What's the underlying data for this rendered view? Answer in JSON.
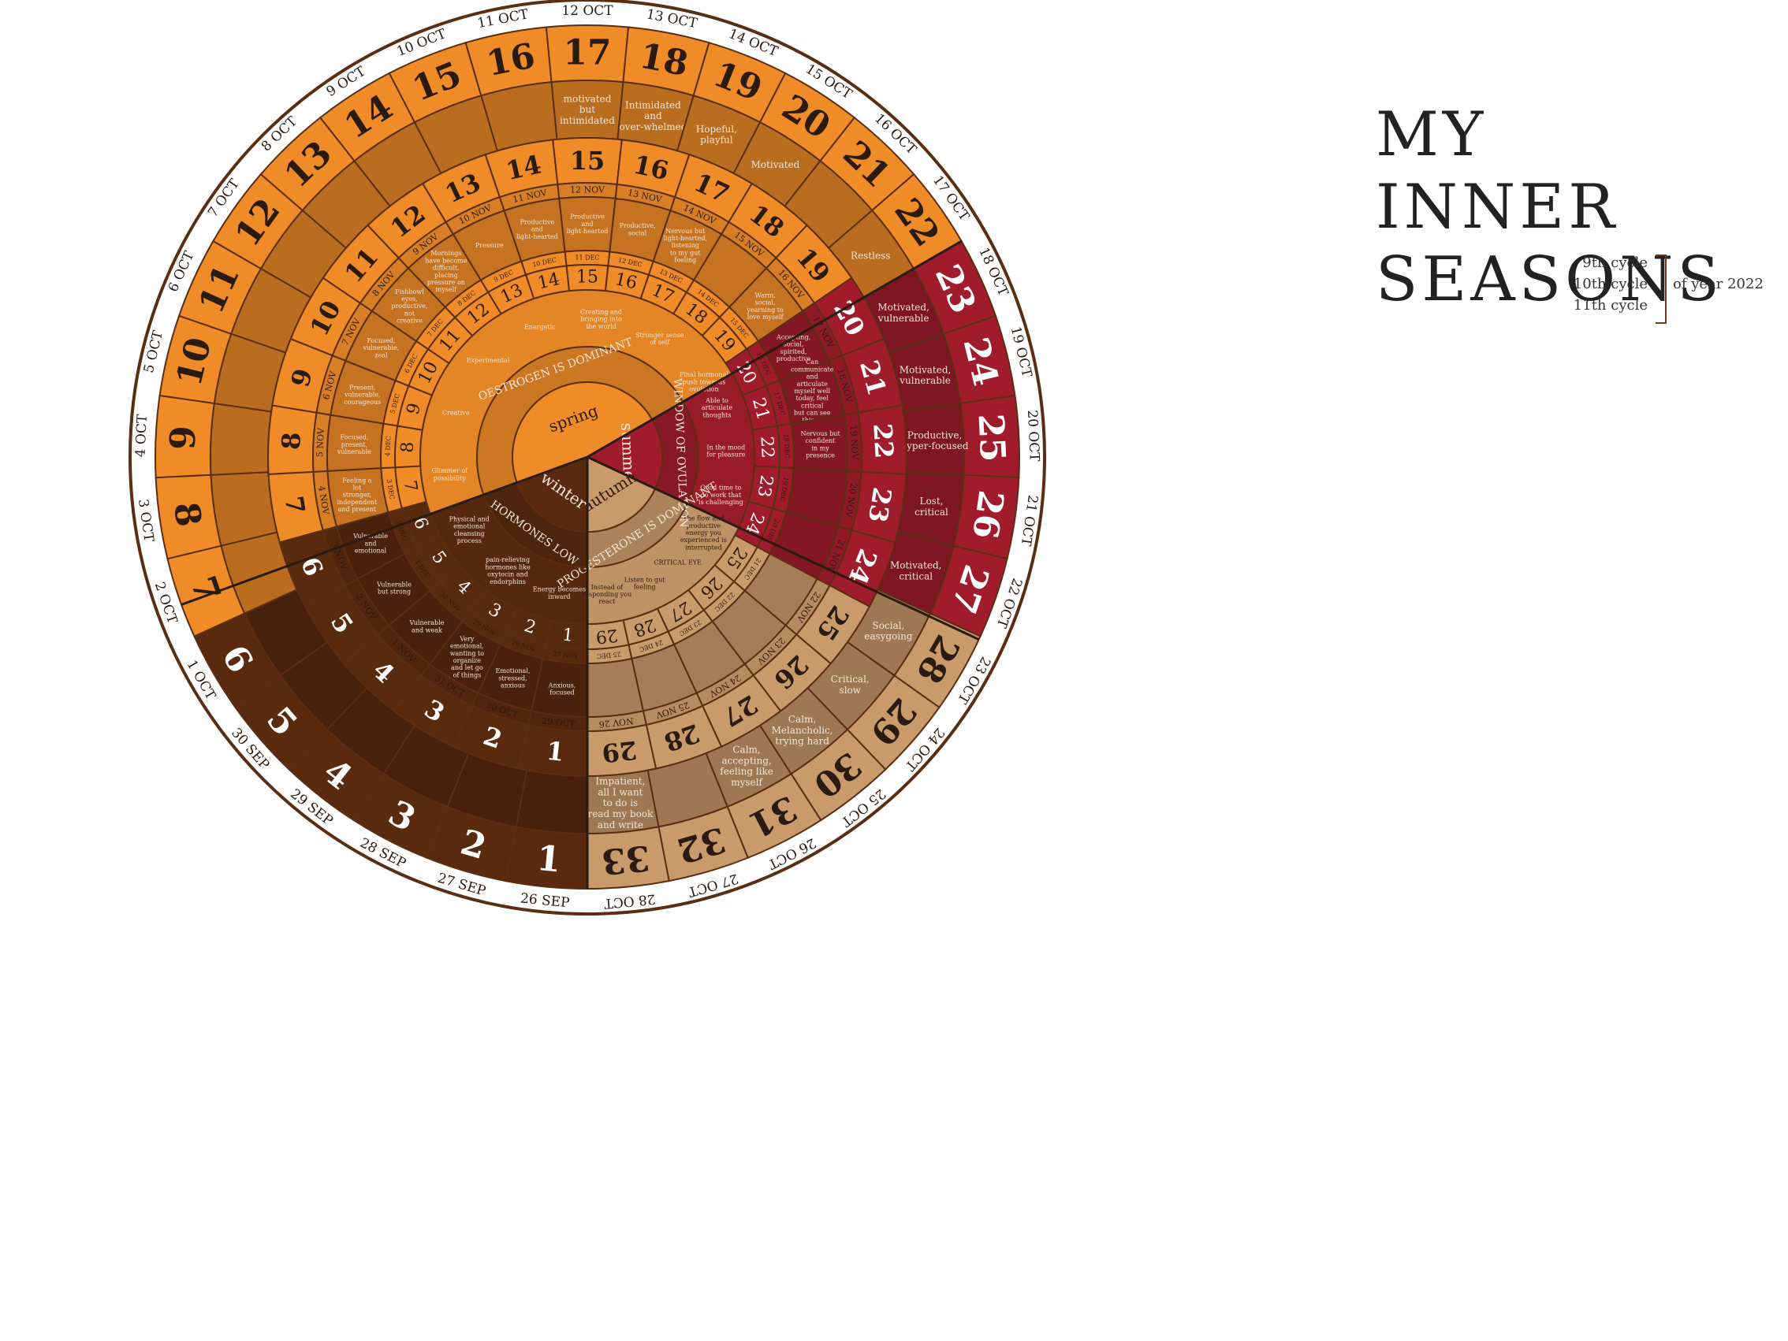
{
  "title": {
    "line1": "MY INNER",
    "line2": "SEASONS"
  },
  "legend": {
    "cycles": [
      "9th cycle",
      "10th cycle",
      "11th cycle"
    ],
    "suffix": "of year 2022"
  },
  "colors": {
    "spring": "#f08c28",
    "summer": "#a01c2c",
    "autumn": "#c99a6a",
    "winter": "#5a2a0e",
    "outline": "#5a2e12"
  },
  "seasons": [
    {
      "name": "spring",
      "label": "spring",
      "phase": "OESTROGEN IS DOMINANT"
    },
    {
      "name": "summer",
      "label": "summer",
      "phase": "WINDOW OF OVULATION"
    },
    {
      "name": "autumn",
      "label": "autumn",
      "phase": "PROGESTERONE IS DOMINANT"
    },
    {
      "name": "winter",
      "label": "winter",
      "phase": "HORMONES LOW"
    }
  ],
  "cycle9": {
    "days": [
      "1",
      "2",
      "3",
      "4",
      "5",
      "6",
      "7",
      "8",
      "9",
      "10",
      "11",
      "12",
      "13",
      "14",
      "15",
      "16",
      "17",
      "18",
      "19",
      "20",
      "21",
      "22",
      "23",
      "24",
      "25",
      "26",
      "27",
      "28",
      "29",
      "30",
      "31",
      "32",
      "33"
    ],
    "dates": [
      "26 SEP",
      "27 SEP",
      "28 SEP",
      "29 SEP",
      "30 SEP",
      "1 OCT",
      "2 OCT",
      "3 OCT",
      "4 OCT",
      "5 OCT",
      "6 OCT",
      "7 OCT",
      "8 OCT",
      "9 OCT",
      "10 OCT",
      "11 OCT",
      "12 OCT",
      "13 OCT",
      "14 OCT",
      "15 OCT",
      "16 OCT",
      "17 OCT",
      "18 OCT",
      "19 OCT",
      "20 OCT",
      "21 OCT",
      "22 OCT",
      "23 OCT",
      "24 OCT",
      "25 OCT",
      "26 OCT",
      "27 OCT",
      "28 OCT"
    ],
    "moods": [
      {
        "day": 17,
        "text": "motivated but intimidated"
      },
      {
        "day": 18,
        "text": "Intimidated and over-whelmed"
      },
      {
        "day": 19,
        "text": "Hopeful, playful"
      },
      {
        "day": 20,
        "text": "Motivated"
      },
      {
        "day": 22,
        "text": "Restless"
      },
      {
        "day": 23,
        "text": "Motivated, vulnerable"
      },
      {
        "day": 24,
        "text": "Motivated, vulnerable"
      },
      {
        "day": 25,
        "text": "Productive, hyper-focused"
      },
      {
        "day": 26,
        "text": "Lost, critical"
      },
      {
        "day": 27,
        "text": "Motivated, critical"
      },
      {
        "day": 28,
        "text": "Social, easygoing"
      },
      {
        "day": 29,
        "text": "Critical, slow"
      },
      {
        "day": 30,
        "text": "Calm, Melancholic, trying hard"
      },
      {
        "day": 31,
        "text": "Calm, accepting, feeling like myself"
      },
      {
        "day": 33,
        "text": "Impatient, all I want to do is read my book and write"
      }
    ]
  },
  "cycle10": {
    "days": [
      "1",
      "2",
      "3",
      "4",
      "5",
      "6",
      "7",
      "8",
      "9",
      "10",
      "11",
      "12",
      "13",
      "14",
      "15",
      "16",
      "17",
      "18",
      "19",
      "20",
      "21",
      "22",
      "23",
      "24",
      "25",
      "26",
      "27",
      "28",
      "29"
    ],
    "dates": [
      "29 OCT",
      "30 OCT",
      "31 OCT",
      "1 NOV",
      "2 NOV",
      "3 NOV",
      "4 NOV",
      "5 NOV",
      "6 NOV",
      "7 NOV",
      "8 NOV",
      "9 NOV",
      "10 NOV",
      "11 NOV",
      "12 NOV",
      "13 NOV",
      "14 NOV",
      "15 NOV",
      "16 NOV",
      "17 NOV",
      "18 NOV",
      "19 NOV",
      "20 NOV",
      "21 NOV",
      "22 NOV",
      "23 NOV",
      "24 NOV",
      "25 NOV",
      "NOV 26"
    ]
  },
  "cycle11": {
    "days": [
      "1",
      "2",
      "3",
      "4",
      "5",
      "6",
      "7",
      "8",
      "9",
      "10",
      "11",
      "12",
      "13",
      "14",
      "15",
      "16",
      "17",
      "18",
      "19",
      "20",
      "21",
      "22",
      "23",
      "24",
      "25",
      "26",
      "27",
      "28",
      "29"
    ],
    "dates": [
      "27 NOV",
      "28 NOV",
      "29 NOV",
      "30 NOV",
      "1 DEC",
      "2 DEC",
      "3 DEC",
      "4 DEC",
      "5 DEC",
      "6 DEC",
      "7 DEC",
      "8 DEC",
      "9 DEC",
      "10 DEC",
      "11 DEC",
      "12 DEC",
      "13 DEC",
      "14 DEC",
      "15 DEC",
      "16 DEC",
      "17 DEC",
      "18 DEC",
      "19 DEC",
      "20 DEC",
      "21 DEC",
      "22 DEC",
      "23 DEC",
      "24 DEC",
      "25 DEC"
    ],
    "moods": [
      {
        "day": 1,
        "text": "Anxious, focused"
      },
      {
        "day": 2,
        "text": "Emotional, stressed, anxious"
      },
      {
        "day": 3,
        "text": "Very emotional, wanting to organize and let go of things"
      },
      {
        "day": 4,
        "text": "Vulnerable and weak"
      },
      {
        "day": 5,
        "text": "Vulnerable but strong"
      },
      {
        "day": 6,
        "text": "Vulnerable and emotional"
      },
      {
        "day": 7,
        "text": "Feeling a lot stronger, independent and present"
      },
      {
        "day": 8,
        "text": "Focused, present, vulnerable"
      },
      {
        "day": 9,
        "text": "Present, vulnerable, courageous"
      },
      {
        "day": 10,
        "text": "Focused, vulnerable, zeal"
      },
      {
        "day": 11,
        "text": "Fishbowl eyes, productive, not creative"
      },
      {
        "day": 12,
        "text": "Mornings have become difficult, placing pressure on myself"
      },
      {
        "day": 13,
        "text": "Pressure"
      },
      {
        "day": 14,
        "text": "Productive and light-hearted"
      },
      {
        "day": 15,
        "text": "Productive and light-hearted"
      },
      {
        "day": 16,
        "text": "Productive, social"
      },
      {
        "day": 17,
        "text": "Nervous but light-hearted, listening to my gut feeling"
      },
      {
        "day": 19,
        "text": "Warm, social, yearning to love myself"
      },
      {
        "day": 20,
        "text": "Accepting, social, spirited, productive"
      },
      {
        "day": 21,
        "text": "Can communicate and articulate myself well today, feel critical but can see things clearly"
      },
      {
        "day": 22,
        "text": "Nervous but confident in my presence"
      }
    ]
  },
  "phase_notes": [
    {
      "season": "spring",
      "text": "Glimmer of possibility"
    },
    {
      "season": "spring",
      "text": "Creative"
    },
    {
      "season": "spring",
      "text": "Experimental"
    },
    {
      "season": "spring",
      "text": "Energetic"
    },
    {
      "season": "spring",
      "text": "Creating and bringing into the world"
    },
    {
      "season": "spring",
      "text": "Stronger sense of self"
    },
    {
      "season": "spring",
      "text": "Final hormonal push towards ovulation"
    },
    {
      "season": "summer",
      "text": "Able to articulate thoughts"
    },
    {
      "season": "summer",
      "text": "In the mood for pleasure"
    },
    {
      "season": "summer",
      "text": "Good time to do work that is challenging"
    },
    {
      "season": "autumn",
      "text": "The flow and productive energy you experienced is interrupted"
    },
    {
      "season": "autumn",
      "text": "CRITICAL EYE"
    },
    {
      "season": "autumn",
      "text": "Listen to gut feeling"
    },
    {
      "season": "autumn",
      "text": "Instead of responding you react"
    },
    {
      "season": "winter",
      "text": "Energy becomes inward"
    },
    {
      "season": "winter",
      "text": "pain-relieving hormones like oxytocin and endorphins"
    },
    {
      "season": "winter",
      "text": "Physical and emotional cleansing process"
    }
  ]
}
